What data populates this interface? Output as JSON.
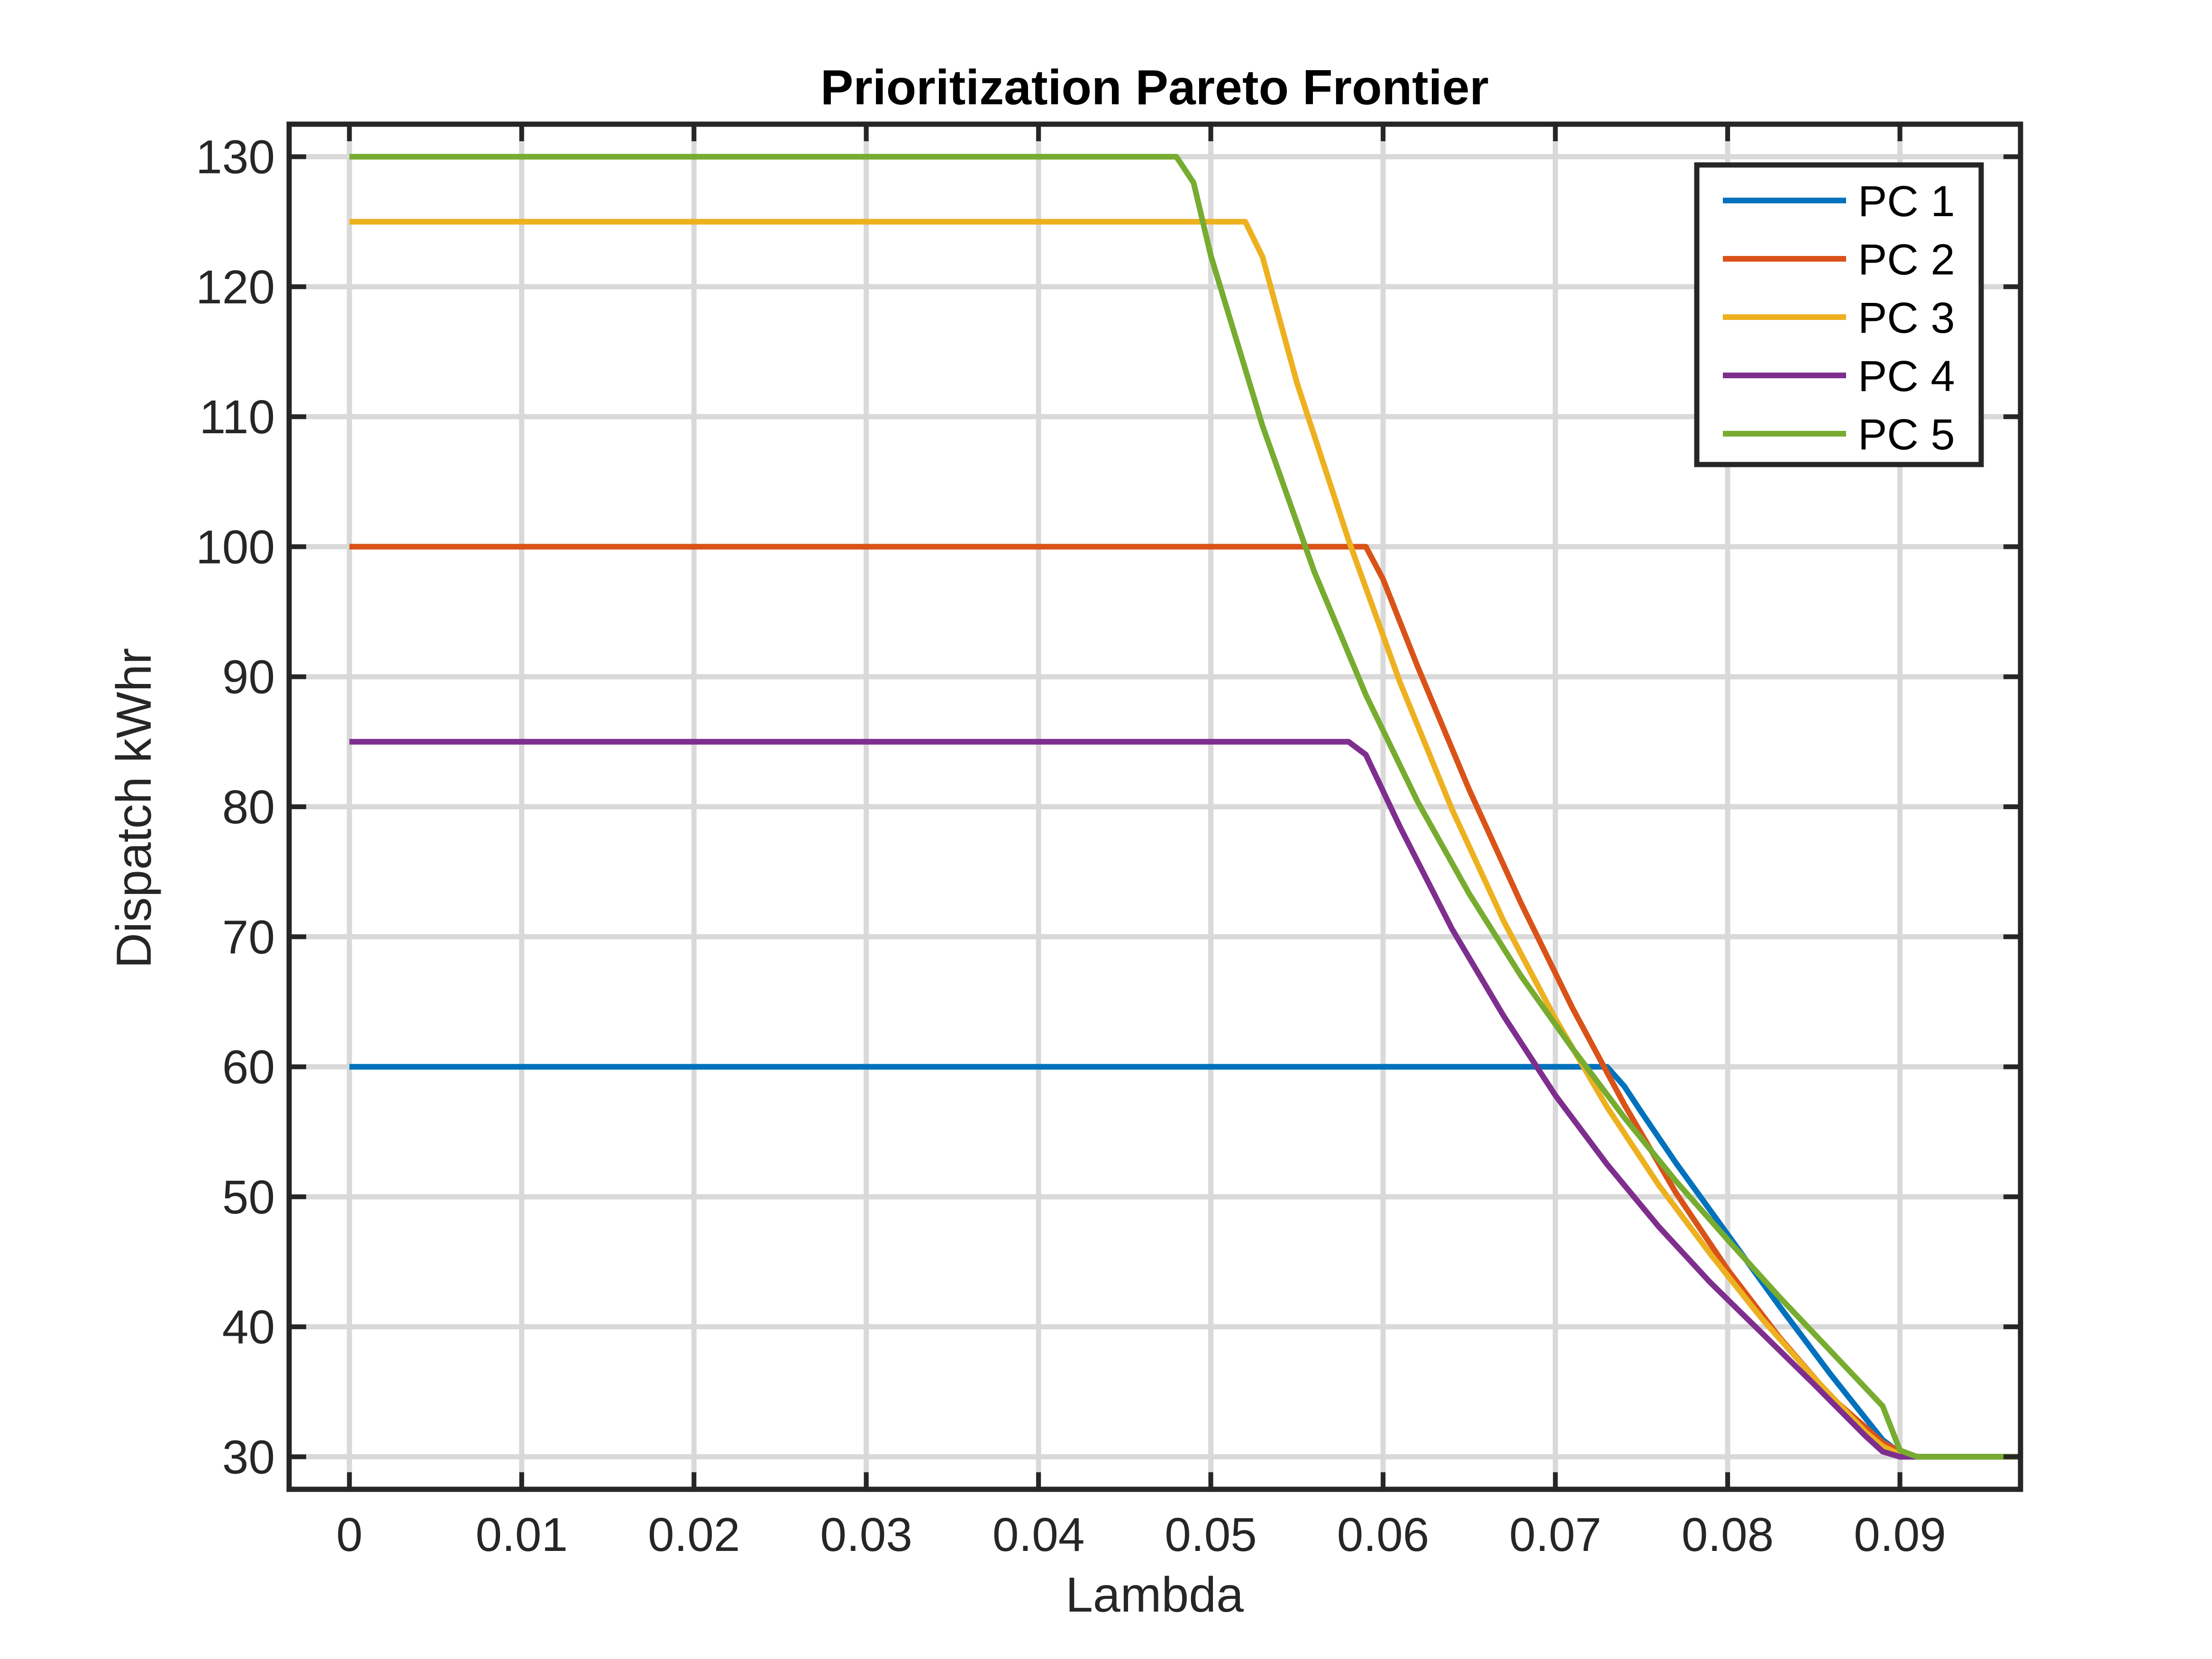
{
  "chart_data": {
    "type": "line",
    "title": "Prioritization Pareto Frontier",
    "xlabel": "Lambda",
    "ylabel": "Dispatch kWhr",
    "xlim": [
      -0.0035,
      0.097
    ],
    "ylim": [
      27.5,
      132.5
    ],
    "xticks": [
      0,
      0.01,
      0.02,
      0.03,
      0.04,
      0.05,
      0.06,
      0.07,
      0.08,
      0.09
    ],
    "xtick_labels": [
      "0",
      "0.01",
      "0.02",
      "0.03",
      "0.04",
      "0.05",
      "0.06",
      "0.07",
      "0.08",
      "0.09"
    ],
    "yticks": [
      30,
      40,
      50,
      60,
      70,
      80,
      90,
      100,
      110,
      120,
      130
    ],
    "ytick_labels": [
      "30",
      "40",
      "50",
      "60",
      "70",
      "80",
      "90",
      "100",
      "110",
      "120",
      "130"
    ],
    "grid": true,
    "legend_position": "top-right",
    "series": [
      {
        "name": "PC 1",
        "color": "#0072BD",
        "x": [
          0,
          0.073,
          0.074,
          0.075,
          0.077,
          0.08,
          0.083,
          0.086,
          0.089,
          0.09,
          0.091,
          0.097
        ],
        "y": [
          60,
          60,
          58.5,
          56.5,
          52.6,
          47.1,
          41.6,
          36.3,
          31.3,
          30.3,
          30,
          30
        ]
      },
      {
        "name": "PC 2",
        "color": "#D95319",
        "x": [
          0,
          0.059,
          0.06,
          0.062,
          0.065,
          0.068,
          0.071,
          0.074,
          0.077,
          0.08,
          0.083,
          0.086,
          0.089,
          0.09,
          0.091,
          0.097
        ],
        "y": [
          100,
          100,
          97.5,
          90.8,
          81.3,
          72.6,
          64.5,
          57.1,
          50.3,
          44.4,
          39.2,
          34.6,
          31.1,
          30.4,
          30,
          30
        ]
      },
      {
        "name": "PC 3",
        "color": "#EDB120",
        "x": [
          0,
          0.052,
          0.053,
          0.055,
          0.058,
          0.061,
          0.064,
          0.067,
          0.07,
          0.073,
          0.076,
          0.079,
          0.082,
          0.085,
          0.088,
          0.089,
          0.09,
          0.091,
          0.097
        ],
        "y": [
          125,
          125,
          122.3,
          112.6,
          100.5,
          89.5,
          79.8,
          71.2,
          63.7,
          56.9,
          50.9,
          45.6,
          40.6,
          36.1,
          31.9,
          30.8,
          30.2,
          30,
          30
        ]
      },
      {
        "name": "PC 4",
        "color": "#7E2F8E",
        "x": [
          0,
          0.058,
          0.059,
          0.061,
          0.064,
          0.067,
          0.07,
          0.073,
          0.076,
          0.079,
          0.082,
          0.085,
          0.088,
          0.089,
          0.09,
          0.091,
          0.097
        ],
        "y": [
          85,
          85,
          84,
          78.4,
          70.6,
          63.9,
          57.8,
          52.5,
          47.7,
          43.4,
          39.5,
          35.6,
          31.6,
          30.4,
          30,
          30,
          30
        ]
      },
      {
        "name": "PC 5",
        "color": "#77AC30",
        "x": [
          0,
          0.048,
          0.049,
          0.05,
          0.053,
          0.056,
          0.059,
          0.062,
          0.065,
          0.068,
          0.071,
          0.074,
          0.077,
          0.08,
          0.083,
          0.086,
          0.089,
          0.09,
          0.091,
          0.097
        ],
        "y": [
          130,
          130,
          128,
          122.4,
          109.3,
          98.1,
          88.6,
          80.4,
          73.3,
          67,
          61.4,
          56.1,
          51.2,
          46.7,
          42.3,
          38.1,
          33.9,
          30.5,
          30,
          30
        ]
      }
    ]
  }
}
